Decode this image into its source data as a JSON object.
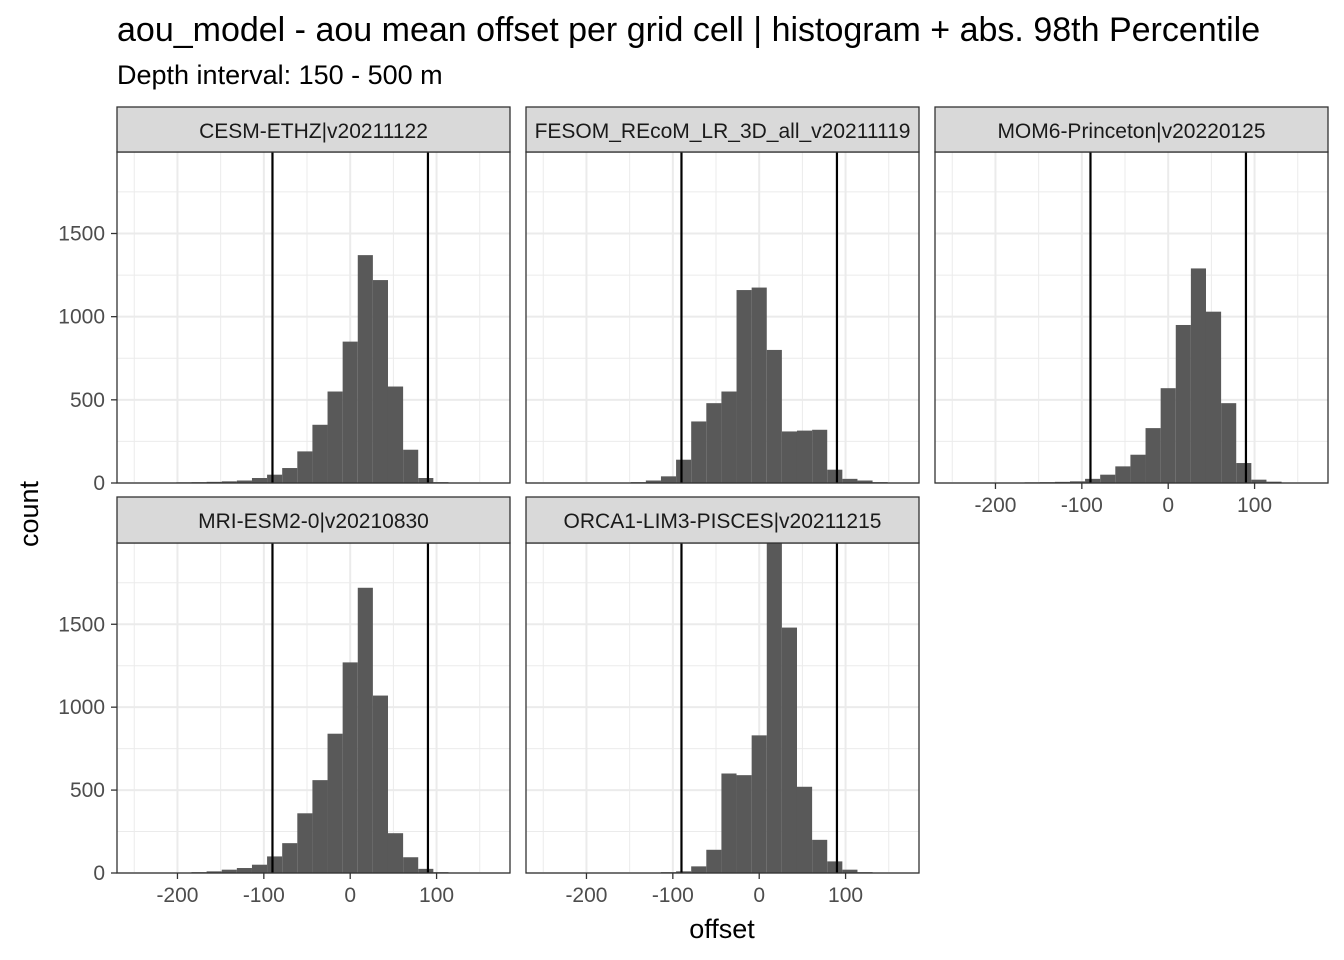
{
  "chart_data": {
    "type": "bar",
    "title": "aou_model  -  aou mean offset per grid cell | histogram + abs. 98th Percentile",
    "subtitle": "Depth interval: 150 - 500 m",
    "xlabel": "offset",
    "ylabel": "count",
    "xlim": [
      -270,
      185
    ],
    "ylim": [
      0,
      1990
    ],
    "x_ticks": [
      -200,
      -100,
      0,
      100
    ],
    "x_tick_labels": [
      "-200",
      "-100",
      "0",
      "100"
    ],
    "y_ticks": [
      0,
      500,
      1000,
      1500
    ],
    "y_tick_labels": [
      "0",
      "500",
      "1000",
      "1500"
    ],
    "bin_width": 17.5,
    "grid": true,
    "facets": [
      {
        "label": "CESM-ETHZ|v20211122",
        "percentile_lines": [
          -90,
          90
        ],
        "bins": [
          {
            "x": -227.5,
            "count": 2
          },
          {
            "x": -210,
            "count": 3
          },
          {
            "x": -192.5,
            "count": 4
          },
          {
            "x": -175,
            "count": 5
          },
          {
            "x": -157.5,
            "count": 7
          },
          {
            "x": -140,
            "count": 10
          },
          {
            "x": -122.5,
            "count": 15
          },
          {
            "x": -105,
            "count": 30
          },
          {
            "x": -87.5,
            "count": 50
          },
          {
            "x": -70,
            "count": 90
          },
          {
            "x": -52.5,
            "count": 190
          },
          {
            "x": -35,
            "count": 350
          },
          {
            "x": -17.5,
            "count": 550
          },
          {
            "x": 0,
            "count": 850
          },
          {
            "x": 17.5,
            "count": 1370
          },
          {
            "x": 35,
            "count": 1220
          },
          {
            "x": 52.5,
            "count": 580
          },
          {
            "x": 70,
            "count": 200
          },
          {
            "x": 87.5,
            "count": 30
          },
          {
            "x": 105,
            "count": 5
          }
        ]
      },
      {
        "label": "FESOM_REcoM_LR_3D_all_v20211119",
        "percentile_lines": [
          -90,
          90
        ],
        "bins": [
          {
            "x": -140,
            "count": 5
          },
          {
            "x": -122.5,
            "count": 15
          },
          {
            "x": -105,
            "count": 40
          },
          {
            "x": -87.5,
            "count": 140
          },
          {
            "x": -70,
            "count": 370
          },
          {
            "x": -52.5,
            "count": 480
          },
          {
            "x": -35,
            "count": 550
          },
          {
            "x": -17.5,
            "count": 1160
          },
          {
            "x": 0,
            "count": 1175
          },
          {
            "x": 17.5,
            "count": 800
          },
          {
            "x": 35,
            "count": 310
          },
          {
            "x": 52.5,
            "count": 315
          },
          {
            "x": 70,
            "count": 320
          },
          {
            "x": 87.5,
            "count": 80
          },
          {
            "x": 105,
            "count": 25
          },
          {
            "x": 122.5,
            "count": 15
          },
          {
            "x": 140,
            "count": 5
          }
        ]
      },
      {
        "label": "MOM6-Princeton|v20220125",
        "percentile_lines": [
          -90,
          90
        ],
        "bins": [
          {
            "x": -192.5,
            "count": 2
          },
          {
            "x": -175,
            "count": 3
          },
          {
            "x": -157.5,
            "count": 4
          },
          {
            "x": -140,
            "count": 5
          },
          {
            "x": -122.5,
            "count": 7
          },
          {
            "x": -105,
            "count": 10
          },
          {
            "x": -87.5,
            "count": 25
          },
          {
            "x": -70,
            "count": 50
          },
          {
            "x": -52.5,
            "count": 100
          },
          {
            "x": -35,
            "count": 170
          },
          {
            "x": -17.5,
            "count": 330
          },
          {
            "x": 0,
            "count": 570
          },
          {
            "x": 17.5,
            "count": 950
          },
          {
            "x": 35,
            "count": 1290
          },
          {
            "x": 52.5,
            "count": 1030
          },
          {
            "x": 70,
            "count": 480
          },
          {
            "x": 87.5,
            "count": 120
          },
          {
            "x": 105,
            "count": 20
          },
          {
            "x": 122.5,
            "count": 8
          },
          {
            "x": 140,
            "count": 3
          }
        ]
      },
      {
        "label": "MRI-ESM2-0|v20210830",
        "percentile_lines": [
          -90,
          90
        ],
        "bins": [
          {
            "x": -192.5,
            "count": 3
          },
          {
            "x": -175,
            "count": 5
          },
          {
            "x": -157.5,
            "count": 10
          },
          {
            "x": -140,
            "count": 20
          },
          {
            "x": -122.5,
            "count": 30
          },
          {
            "x": -105,
            "count": 50
          },
          {
            "x": -87.5,
            "count": 100
          },
          {
            "x": -70,
            "count": 180
          },
          {
            "x": -52.5,
            "count": 360
          },
          {
            "x": -35,
            "count": 560
          },
          {
            "x": -17.5,
            "count": 840
          },
          {
            "x": 0,
            "count": 1270
          },
          {
            "x": 17.5,
            "count": 1720
          },
          {
            "x": 35,
            "count": 1070
          },
          {
            "x": 52.5,
            "count": 240
          },
          {
            "x": 70,
            "count": 95
          },
          {
            "x": 87.5,
            "count": 25
          },
          {
            "x": 105,
            "count": 5
          }
        ]
      },
      {
        "label": "ORCA1-LIM3-PISCES|v20211215",
        "percentile_lines": [
          -90,
          90
        ],
        "bins": [
          {
            "x": -105,
            "count": 5
          },
          {
            "x": -87.5,
            "count": 10
          },
          {
            "x": -70,
            "count": 40
          },
          {
            "x": -52.5,
            "count": 140
          },
          {
            "x": -35,
            "count": 600
          },
          {
            "x": -17.5,
            "count": 590
          },
          {
            "x": 0,
            "count": 830
          },
          {
            "x": 17.5,
            "count": 1990
          },
          {
            "x": 35,
            "count": 1480
          },
          {
            "x": 52.5,
            "count": 520
          },
          {
            "x": 70,
            "count": 200
          },
          {
            "x": 87.5,
            "count": 70
          },
          {
            "x": 105,
            "count": 20
          },
          {
            "x": 122.5,
            "count": 5
          }
        ]
      }
    ]
  }
}
